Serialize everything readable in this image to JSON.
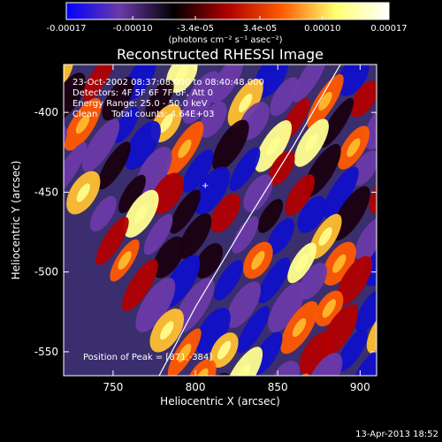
{
  "chart_data": {
    "type": "heatmap",
    "title": "Reconstructed RHESSI Image",
    "xlabel": "Heliocentric X (arcsec)",
    "ylabel": "Heliocentric Y (arcsec)",
    "xlim": [
      720,
      910
    ],
    "ylim": [
      -565,
      -370
    ],
    "x_ticks": [
      "750",
      "800",
      "850",
      "900"
    ],
    "x_tick_values": [
      750,
      800,
      850,
      900
    ],
    "y_ticks": [
      "-400",
      "-450",
      "-500",
      "-550"
    ],
    "y_tick_values": [
      -400,
      -450,
      -500,
      -550
    ],
    "colorbar": {
      "ticks": [
        "-0.00017",
        "-0.00010",
        "-3.4e-05",
        "3.4e-05",
        "0.00010",
        "0.00017"
      ],
      "tick_values": [
        -0.00017,
        -0.0001,
        -3.4e-05,
        3.4e-05,
        0.0001,
        0.00017
      ],
      "range": [
        -0.00017,
        0.00017
      ],
      "unit": "(photons cm⁻² s⁻¹ asec⁻²)",
      "colors": [
        "#0000ff",
        "#6a3aa8",
        "#000000",
        "#b00000",
        "#ff5a00",
        "#ffff70",
        "#ffffff"
      ]
    },
    "annotations": [
      "23-Oct-2002 08:37:08.000 to 08:40:48.000",
      "Detectors: 4F 5F 6F 7F 8F, Att 0",
      "Energy Range: 25.0 - 50.0 keV",
      "Clean     Total counts: 4.64E+03",
      "Position of Peak = [871,-384]"
    ],
    "peak": {
      "x": 871,
      "y": -384
    },
    "limb_curve": [
      [
        778,
        -565
      ],
      [
        800,
        -522
      ],
      [
        830,
        -470
      ],
      [
        860,
        -420
      ],
      [
        888,
        -370
      ]
    ],
    "grid": false,
    "legend": "none"
  },
  "footer_timestamp": "13-Apr-2013 18:52"
}
